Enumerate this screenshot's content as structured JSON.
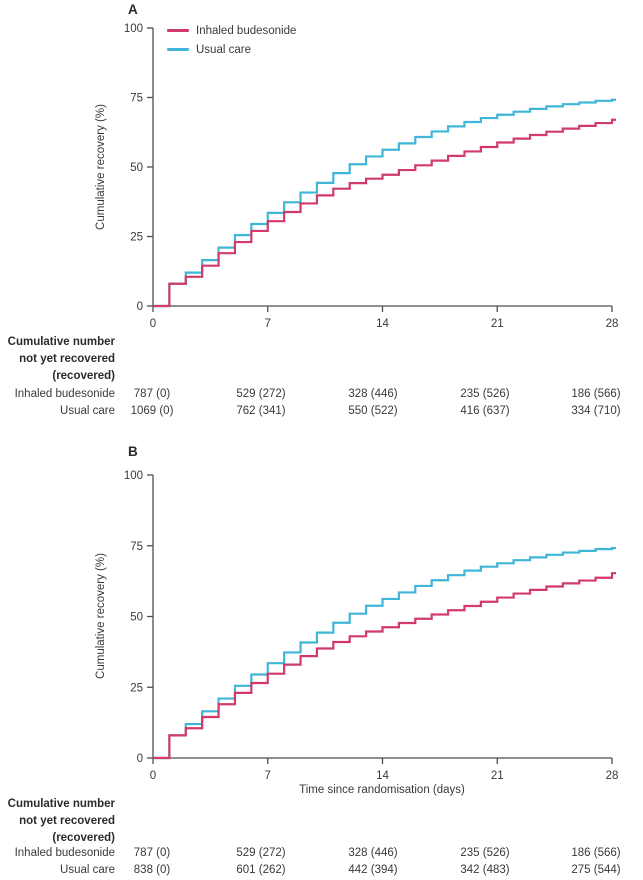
{
  "colors": {
    "budesonide": "#d13a6b",
    "usual_care": "#3fb6d8",
    "axis": "#4d4d4d",
    "text": "#3a3a3a"
  },
  "chart_data": [
    {
      "type": "line",
      "style": "step",
      "panel_label": "A",
      "title": "",
      "xlabel": "",
      "ylabel": "Cumulative recovery (%)",
      "xlim": [
        0,
        28
      ],
      "ylim": [
        0,
        100
      ],
      "x_ticks": [
        "0",
        "7",
        "14",
        "21",
        "28"
      ],
      "x_tick_values": [
        0,
        7,
        14,
        21,
        28
      ],
      "y_ticks": [
        "0",
        "25",
        "50",
        "75",
        "100"
      ],
      "y_tick_values": [
        0,
        25,
        50,
        75,
        100
      ],
      "grid": false,
      "legend_position": "inside-top-left",
      "show_legend": true,
      "x_days": [
        0,
        1,
        2,
        3,
        4,
        5,
        6,
        7,
        8,
        9,
        10,
        11,
        12,
        13,
        14,
        15,
        16,
        17,
        18,
        19,
        20,
        21,
        22,
        23,
        24,
        25,
        26,
        27,
        28
      ],
      "series": [
        {
          "name": "Inhaled budesonide",
          "color": "#d13a6b",
          "values": [
            0,
            8,
            10.5,
            14.5,
            19,
            23,
            27,
            30.5,
            33.8,
            36.9,
            39.8,
            42.2,
            44.2,
            45.8,
            47.2,
            48.9,
            50.6,
            52.3,
            54,
            55.6,
            57.2,
            58.8,
            60.2,
            61.5,
            62.7,
            63.8,
            64.8,
            65.8,
            67
          ]
        },
        {
          "name": "Usual care",
          "color": "#3fb6d8",
          "values": [
            0,
            8,
            12,
            16.5,
            21,
            25.5,
            29.5,
            33.5,
            37.3,
            40.8,
            44.3,
            47.8,
            51,
            53.8,
            56.2,
            58.5,
            60.8,
            62.8,
            64.6,
            66.2,
            67.6,
            68.8,
            69.9,
            70.9,
            71.8,
            72.6,
            73.2,
            73.8,
            74.2
          ]
        }
      ],
      "risk_table": {
        "header": [
          "Cumulative number",
          "not yet recovered",
          "(recovered)"
        ],
        "rows": [
          {
            "label": "Inhaled budesonide",
            "values": [
              "787 (0)",
              "529 (272)",
              "328 (446)",
              "235 (526)",
              "186 (566)"
            ]
          },
          {
            "label": "Usual care",
            "values": [
              "1069 (0)",
              "762 (341)",
              "550 (522)",
              "416 (637)",
              "334 (710)"
            ]
          }
        ]
      }
    },
    {
      "type": "line",
      "style": "step",
      "panel_label": "B",
      "title": "",
      "xlabel": "Time since randomisation (days)",
      "ylabel": "Cumulative recovery (%)",
      "xlim": [
        0,
        28
      ],
      "ylim": [
        0,
        100
      ],
      "x_ticks": [
        "0",
        "7",
        "14",
        "21",
        "28"
      ],
      "x_tick_values": [
        0,
        7,
        14,
        21,
        28
      ],
      "y_ticks": [
        "0",
        "25",
        "50",
        "75",
        "100"
      ],
      "y_tick_values": [
        0,
        25,
        50,
        75,
        100
      ],
      "grid": false,
      "legend_position": "none",
      "show_legend": false,
      "x_days": [
        0,
        1,
        2,
        3,
        4,
        5,
        6,
        7,
        8,
        9,
        10,
        11,
        12,
        13,
        14,
        15,
        16,
        17,
        18,
        19,
        20,
        21,
        22,
        23,
        24,
        25,
        26,
        27,
        28
      ],
      "series": [
        {
          "name": "Inhaled budesonide",
          "color": "#d13a6b",
          "values": [
            0,
            8,
            10.5,
            14.5,
            19,
            23,
            26.5,
            29.8,
            33,
            36,
            38.7,
            41,
            43,
            44.7,
            46.2,
            47.7,
            49.2,
            50.7,
            52.2,
            53.7,
            55.2,
            56.7,
            58.1,
            59.4,
            60.6,
            61.7,
            62.7,
            63.7,
            65.3
          ]
        },
        {
          "name": "Usual care",
          "color": "#3fb6d8",
          "values": [
            0,
            8,
            12,
            16.5,
            21,
            25.5,
            29.5,
            33.5,
            37.3,
            40.8,
            44.3,
            47.8,
            51,
            53.8,
            56.2,
            58.5,
            60.8,
            62.8,
            64.6,
            66.2,
            67.6,
            68.8,
            69.9,
            70.9,
            71.8,
            72.6,
            73.2,
            73.8,
            74.2
          ]
        }
      ],
      "risk_table": {
        "header": [
          "Cumulative number",
          "not yet recovered",
          "(recovered)"
        ],
        "rows": [
          {
            "label": "Inhaled budesonide",
            "values": [
              "787 (0)",
              "529 (272)",
              "328 (446)",
              "235 (526)",
              "186 (566)"
            ]
          },
          {
            "label": "Usual care",
            "values": [
              "838 (0)",
              "601 (262)",
              "442 (394)",
              "342 (483)",
              "275 (544)"
            ]
          }
        ]
      }
    }
  ]
}
